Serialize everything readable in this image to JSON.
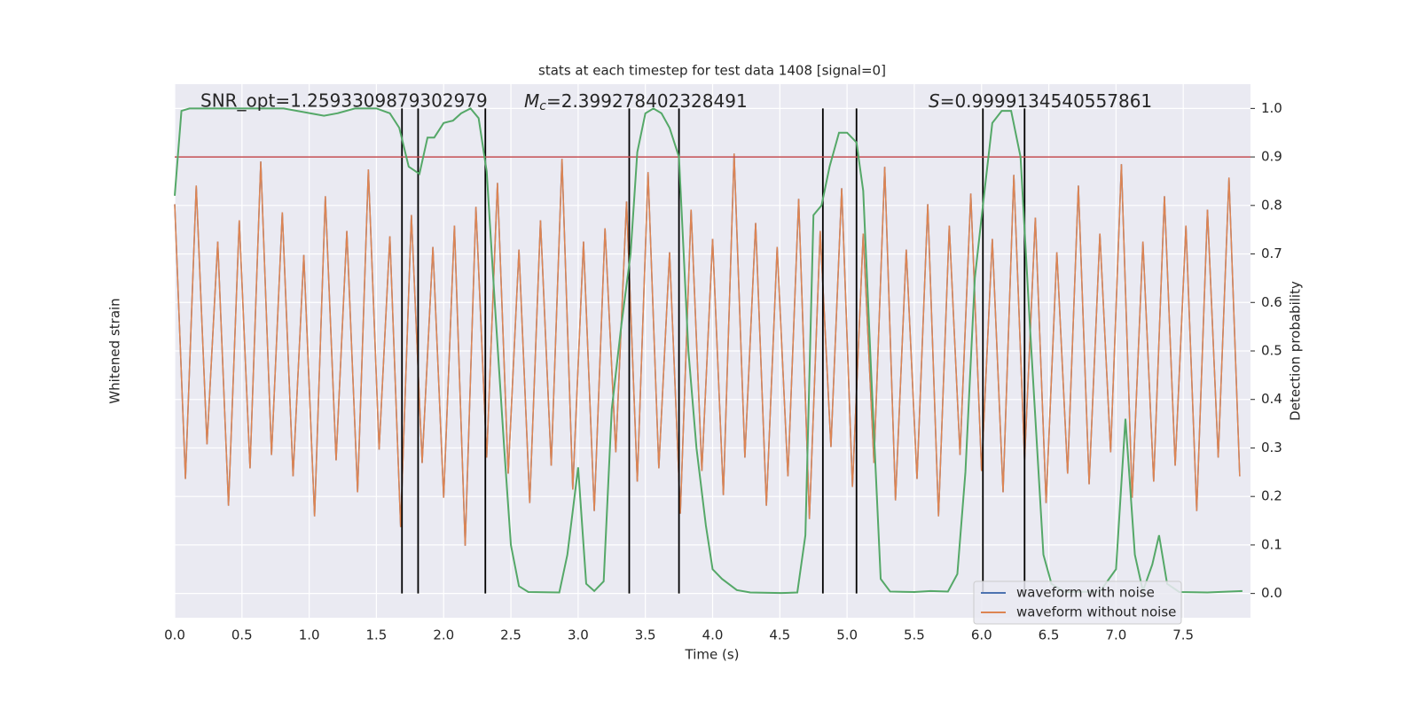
{
  "chart_data": {
    "type": "line",
    "title": "stats at each timestep for test data 1408 [signal=0]",
    "xlabel": "Time (s)",
    "ylabel": "Whitened strain",
    "y2label": "Detection probability",
    "annotations": [
      {
        "text": "SNR_opt=1.2593309879302979"
      },
      {
        "symbol": "M",
        "subscript": "c",
        "text": "=2.399278402328491"
      },
      {
        "symbol": "S",
        "text": "=0.9999134540557861"
      }
    ],
    "xlim": [
      0,
      8
    ],
    "xticks": [
      {
        "value": 0,
        "label": "0.0"
      },
      {
        "value": 0.5,
        "label": "0.5"
      },
      {
        "value": 1,
        "label": "1.0"
      },
      {
        "value": 1.5,
        "label": "1.5"
      },
      {
        "value": 2,
        "label": "2.0"
      },
      {
        "value": 2.5,
        "label": "2.5"
      },
      {
        "value": 3,
        "label": "3.0"
      },
      {
        "value": 3.5,
        "label": "3.5"
      },
      {
        "value": 4,
        "label": "4.0"
      },
      {
        "value": 4.5,
        "label": "4.5"
      },
      {
        "value": 5,
        "label": "5.0"
      },
      {
        "value": 5.5,
        "label": "5.5"
      },
      {
        "value": 6,
        "label": "6.0"
      },
      {
        "value": 6.5,
        "label": "6.5"
      },
      {
        "value": 7,
        "label": "7.0"
      },
      {
        "value": 7.5,
        "label": "7.5"
      }
    ],
    "ylim": [
      -1,
      1
    ],
    "y2lim": [
      -0.05,
      1.05
    ],
    "y2ticks": [
      {
        "value": 0,
        "label": "0.0"
      },
      {
        "value": 0.1,
        "label": "0.1"
      },
      {
        "value": 0.2,
        "label": "0.2"
      },
      {
        "value": 0.3,
        "label": "0.3"
      },
      {
        "value": 0.4,
        "label": "0.4"
      },
      {
        "value": 0.5,
        "label": "0.5"
      },
      {
        "value": 0.6,
        "label": "0.6"
      },
      {
        "value": 0.7,
        "label": "0.7"
      },
      {
        "value": 0.8,
        "label": "0.8"
      },
      {
        "value": 0.9,
        "label": "0.9"
      },
      {
        "value": 1,
        "label": "1.0"
      }
    ],
    "grid": true,
    "legend": "lower right",
    "x": [
      0,
      0.08,
      0.16,
      0.24,
      0.32,
      0.4,
      0.48,
      0.56,
      0.64,
      0.72,
      0.8,
      0.88,
      0.96,
      1.04,
      1.12,
      1.2,
      1.28,
      1.36,
      1.44,
      1.52,
      1.6,
      1.68,
      1.76,
      1.84,
      1.92,
      2,
      2.08,
      2.16,
      2.24,
      2.32,
      2.4,
      2.48,
      2.56,
      2.64,
      2.72,
      2.8,
      2.88,
      2.96,
      3.04,
      3.12,
      3.2,
      3.28,
      3.36,
      3.44,
      3.52,
      3.6,
      3.68,
      3.76,
      3.84,
      3.92,
      4,
      4.08,
      4.16,
      4.24,
      4.32,
      4.4,
      4.48,
      4.56,
      4.64,
      4.72,
      4.8,
      4.88,
      4.96,
      5.04,
      5.12,
      5.2,
      5.28,
      5.36,
      5.44,
      5.52,
      5.6,
      5.68,
      5.76,
      5.84,
      5.92,
      6,
      6.08,
      6.16,
      6.24,
      6.32,
      6.4,
      6.48,
      6.56,
      6.64,
      6.72,
      6.8,
      6.88,
      6.96,
      7.04,
      7.12,
      7.2,
      7.28,
      7.36,
      7.44,
      7.52,
      7.6,
      7.68,
      7.76,
      7.84,
      7.92
    ],
    "series": [
      {
        "name": "waveform with noise",
        "color": "#4c72b0",
        "values": [
          0.55,
          -0.48,
          0.62,
          -0.35,
          0.41,
          -0.58,
          0.49,
          -0.44,
          0.71,
          -0.39,
          0.52,
          -0.47,
          0.36,
          -0.62,
          0.58,
          -0.41,
          0.45,
          -0.53,
          0.68,
          -0.37,
          0.43,
          -0.66,
          0.51,
          -0.42,
          0.39,
          -0.55,
          0.47,
          -0.73,
          0.54,
          -0.4,
          0.63,
          -0.46,
          0.38,
          -0.57,
          0.49,
          -0.43,
          0.72,
          -0.52,
          0.41,
          -0.6,
          0.46,
          -0.38,
          0.56,
          -0.49,
          0.67,
          -0.44,
          0.37,
          -0.61,
          0.53,
          -0.45,
          0.42,
          -0.54,
          0.74,
          -0.4,
          0.48,
          -0.58,
          0.39,
          -0.47,
          0.57,
          -0.63,
          0.45,
          -0.36,
          0.61,
          -0.51,
          0.44,
          -0.42,
          0.69,
          -0.56,
          0.38,
          -0.48,
          0.55,
          -0.62,
          0.47,
          -0.39,
          0.59,
          -0.45,
          0.42,
          -0.53,
          0.66,
          -0.41,
          0.5,
          -0.57,
          0.37,
          -0.46,
          0.62,
          -0.5,
          0.44,
          -0.38,
          0.7,
          -0.55,
          0.41,
          -0.49,
          0.58,
          -0.43,
          0.47,
          -0.6,
          0.53,
          -0.4,
          0.65,
          -0.47
        ]
      },
      {
        "name": "waveform without noise",
        "color": "#dd8452",
        "values": [
          0.55,
          -0.48,
          0.62,
          -0.35,
          0.41,
          -0.58,
          0.49,
          -0.44,
          0.71,
          -0.39,
          0.52,
          -0.47,
          0.36,
          -0.62,
          0.58,
          -0.41,
          0.45,
          -0.53,
          0.68,
          -0.37,
          0.43,
          -0.66,
          0.51,
          -0.42,
          0.39,
          -0.55,
          0.47,
          -0.73,
          0.54,
          -0.4,
          0.63,
          -0.46,
          0.38,
          -0.57,
          0.49,
          -0.43,
          0.72,
          -0.52,
          0.41,
          -0.6,
          0.46,
          -0.38,
          0.56,
          -0.49,
          0.67,
          -0.44,
          0.37,
          -0.61,
          0.53,
          -0.45,
          0.42,
          -0.54,
          0.74,
          -0.4,
          0.48,
          -0.58,
          0.39,
          -0.47,
          0.57,
          -0.63,
          0.45,
          -0.36,
          0.61,
          -0.51,
          0.44,
          -0.42,
          0.69,
          -0.56,
          0.38,
          -0.48,
          0.55,
          -0.62,
          0.47,
          -0.39,
          0.59,
          -0.45,
          0.42,
          -0.53,
          0.66,
          -0.41,
          0.5,
          -0.57,
          0.37,
          -0.46,
          0.62,
          -0.5,
          0.44,
          -0.38,
          0.7,
          -0.55,
          0.41,
          -0.49,
          0.58,
          -0.43,
          0.47,
          -0.6,
          0.53,
          -0.4,
          0.65,
          -0.47
        ]
      }
    ],
    "probability": {
      "color": "#55a868",
      "axis": "y2",
      "x": [
        0,
        0.05,
        0.11,
        0.81,
        1.01,
        1.11,
        1.21,
        1.34,
        1.5,
        1.6,
        1.67,
        1.74,
        1.82,
        1.88,
        1.93,
        2,
        2.07,
        2.13,
        2.2,
        2.26,
        2.32,
        2.38,
        2.45,
        2.5,
        2.56,
        2.63,
        2.86,
        2.92,
        3,
        3.06,
        3.12,
        3.19,
        3.25,
        3.32,
        3.39,
        3.44,
        3.5,
        3.56,
        3.62,
        3.68,
        3.75,
        3.82,
        3.88,
        3.95,
        4,
        4.07,
        4.18,
        4.28,
        4.51,
        4.63,
        4.69,
        4.75,
        4.81,
        4.87,
        4.94,
        5,
        5.07,
        5.12,
        5.18,
        5.25,
        5.32,
        5.5,
        5.62,
        5.75,
        5.82,
        5.88,
        5.95,
        6.01,
        6.08,
        6.15,
        6.22,
        6.29,
        6.36,
        6.46,
        6.52,
        6.62,
        6.88,
        7,
        7.07,
        7.14,
        7.2,
        7.27,
        7.32,
        7.38,
        7.47,
        7.68,
        7.94
      ],
      "values": [
        0.82,
        0.995,
        1,
        1,
        0.99,
        0.985,
        0.99,
        1,
        1,
        0.99,
        0.96,
        0.88,
        0.865,
        0.94,
        0.94,
        0.97,
        0.975,
        0.99,
        1,
        0.98,
        0.87,
        0.6,
        0.3,
        0.1,
        0.015,
        0.003,
        0.002,
        0.08,
        0.26,
        0.02,
        0.005,
        0.025,
        0.38,
        0.55,
        0.7,
        0.91,
        0.99,
        1,
        0.99,
        0.96,
        0.9,
        0.5,
        0.3,
        0.14,
        0.05,
        0.03,
        0.007,
        0.002,
        0.001,
        0.002,
        0.12,
        0.78,
        0.8,
        0.88,
        0.95,
        0.95,
        0.93,
        0.83,
        0.45,
        0.03,
        0.004,
        0.003,
        0.005,
        0.004,
        0.04,
        0.25,
        0.65,
        0.8,
        0.97,
        0.995,
        0.995,
        0.9,
        0.55,
        0.08,
        0.02,
        0.003,
        0.004,
        0.05,
        0.36,
        0.08,
        0.005,
        0.06,
        0.12,
        0.02,
        0.003,
        0.002,
        0.005
      ]
    },
    "threshold": 0.9,
    "threshold_color": "#c44e52",
    "vlines": [
      1.69,
      1.81,
      2.31,
      3.38,
      3.75,
      4.82,
      5.07,
      6.01,
      6.32
    ],
    "vline_color": "#000000"
  }
}
